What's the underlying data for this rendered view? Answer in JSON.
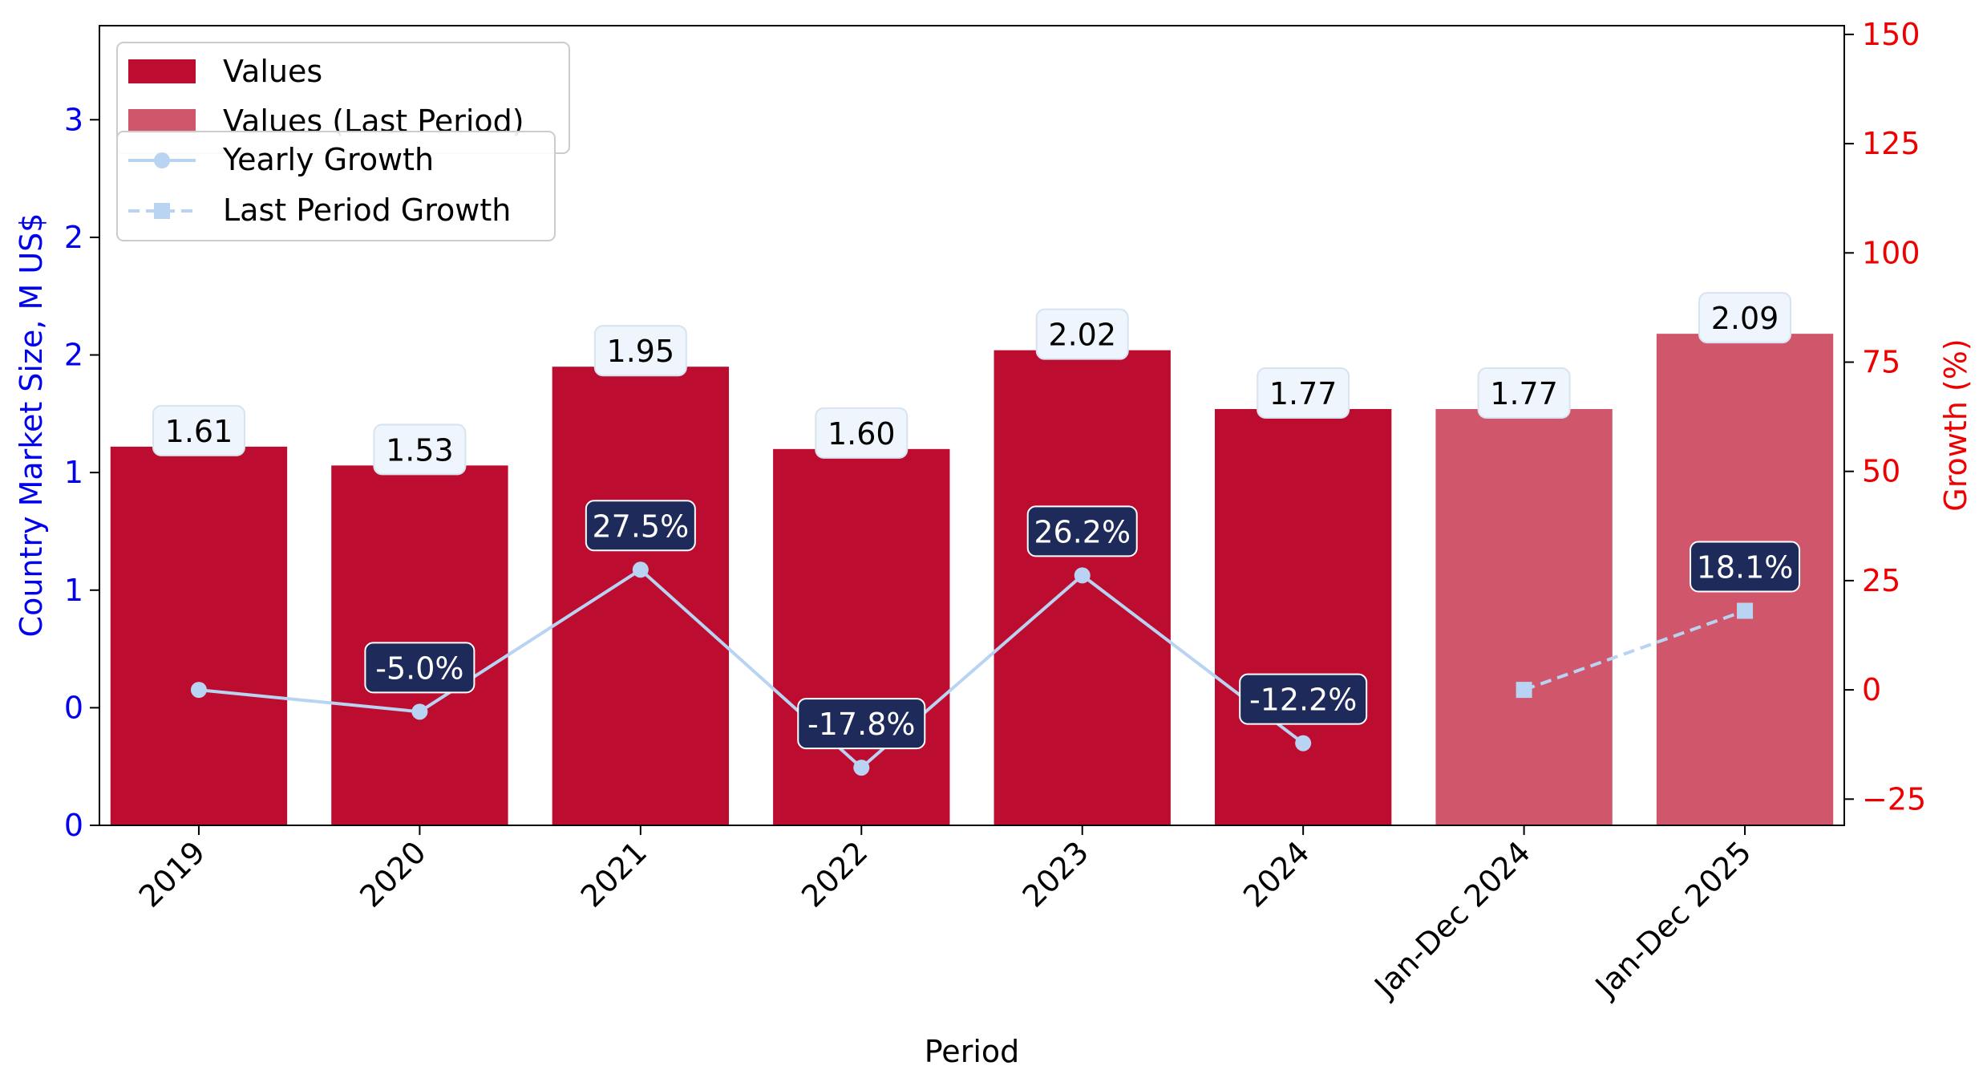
{
  "chart_data": {
    "type": "bar",
    "categories": [
      "2019",
      "2020",
      "2021",
      "2022",
      "2023",
      "2024",
      "Jan-Dec 2024",
      "Jan-Dec 2025"
    ],
    "xlabel": "Period",
    "ylabel": "Country Market Size, M US$",
    "y2label": "Growth (%)",
    "ylim": [
      0,
      3.4
    ],
    "y2lim": [
      -31,
      152
    ],
    "yticks": [
      0,
      0.5,
      1,
      1.5,
      2,
      2.5,
      3
    ],
    "ytick_labels": [
      "0",
      "0",
      "1",
      "1",
      "2",
      "2",
      "3"
    ],
    "y2ticks": [
      -25,
      0,
      25,
      50,
      75,
      100,
      125,
      150
    ],
    "y2tick_labels": [
      "−25",
      "0",
      "25",
      "50",
      "75",
      "100",
      "125",
      "150"
    ],
    "series": [
      {
        "name": "Values",
        "kind": "bar",
        "color": "#bc0c30",
        "values": [
          1.61,
          1.53,
          1.95,
          1.6,
          2.02,
          1.77,
          null,
          null
        ],
        "labels": [
          "1.61",
          "1.53",
          "1.95",
          "1.60",
          "2.02",
          "1.77",
          "",
          ""
        ]
      },
      {
        "name": "Values (Last Period)",
        "kind": "bar",
        "color": "#d0566c",
        "values": [
          null,
          null,
          null,
          null,
          null,
          null,
          1.77,
          2.09
        ],
        "labels": [
          "",
          "",
          "",
          "",
          "",
          "",
          "1.77",
          "2.09"
        ]
      },
      {
        "name": "Yearly Growth",
        "kind": "line",
        "axis": "right",
        "color": "#b9d4f3",
        "marker": "circle",
        "values": [
          0,
          -5.0,
          27.5,
          -17.8,
          26.2,
          -12.2,
          null,
          null
        ],
        "labels": [
          "",
          "-5.0%",
          "27.5%",
          "-17.8%",
          "26.2%",
          "-12.2%",
          "",
          ""
        ]
      },
      {
        "name": "Last Period Growth",
        "kind": "line",
        "axis": "right",
        "color": "#b9d4f3",
        "dash": "dashed",
        "marker": "square",
        "values": [
          null,
          null,
          null,
          null,
          null,
          null,
          0,
          18.1
        ],
        "labels": [
          "",
          "",
          "",
          "",
          "",
          "",
          "",
          "18.1%"
        ]
      }
    ],
    "colors": {
      "left_axis": "#0000ee",
      "right_axis": "#ee0000",
      "value_label_bg": "#eef5fc",
      "growth_label_bg": "#1e2a5a"
    },
    "legend": "top-left",
    "grid": false
  }
}
